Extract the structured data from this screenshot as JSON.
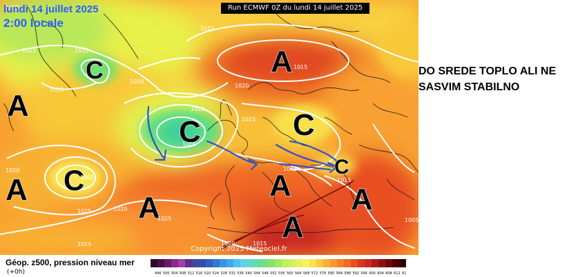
{
  "header": {
    "date": "lundi 14 juillet 2025",
    "time": "2:00 locale",
    "run": "Run ECMWF 0Z du lundi 14 juillet 2025"
  },
  "map": {
    "copyright": "Copyright 2025 Meteociel.fr",
    "centers": [
      {
        "letter": "A",
        "kind": "high"
      },
      {
        "letter": "A",
        "kind": "high"
      },
      {
        "letter": "A",
        "kind": "high"
      },
      {
        "letter": "A",
        "kind": "high"
      },
      {
        "letter": "A",
        "kind": "high"
      },
      {
        "letter": "A",
        "kind": "high"
      },
      {
        "letter": "A",
        "kind": "high"
      },
      {
        "letter": "C",
        "kind": "low"
      },
      {
        "letter": "C",
        "kind": "low"
      },
      {
        "letter": "C",
        "kind": "low"
      },
      {
        "letter": "C",
        "kind": "low"
      },
      {
        "letter": "C",
        "kind": "low"
      }
    ],
    "isobar_labels": [
      "1005",
      "1015",
      "1015",
      "1015",
      "1020",
      "1015",
      "1015",
      "1010",
      "1005",
      "1015",
      "1020",
      "1020",
      "1005",
      "1020",
      "1025",
      "1025",
      "1015",
      "1015",
      "1020",
      "1015",
      "1005",
      "1005"
    ]
  },
  "headline": {
    "line1": "DO SREDE TOPLO ALI NE",
    "line2": "SASVIM STABILNO"
  },
  "caption": {
    "title": "Géop. z500, pression niveau mer",
    "subtitle": "(+0h)"
  },
  "legend": {
    "colors": [
      "#2a0a2a",
      "#4a1048",
      "#6a1a6a",
      "#8a2a8a",
      "#a040a8",
      "#5a3090",
      "#404898",
      "#3050a8",
      "#3060c0",
      "#3078d0",
      "#3890e0",
      "#40a8e8",
      "#50c0f0",
      "#60d0e8",
      "#60d8c8",
      "#60e0a0",
      "#70e080",
      "#88e070",
      "#a0e860",
      "#b8f060",
      "#d0f060",
      "#e8f060",
      "#f8f060",
      "#f8e050",
      "#f8c840",
      "#f8b038",
      "#f89830",
      "#f88028",
      "#f06828",
      "#e85020",
      "#d83820",
      "#c82820",
      "#b01818",
      "#901010",
      "#700808",
      "#500000",
      "#300000"
    ],
    "values": [
      "496",
      "500",
      "504",
      "508",
      "512",
      "516",
      "520",
      "524",
      "528",
      "532",
      "536",
      "540",
      "544",
      "548",
      "552",
      "556",
      "560",
      "564",
      "568",
      "572",
      "576",
      "580",
      "584",
      "588",
      "592",
      "596",
      "600",
      "604",
      "608",
      "612",
      "616"
    ]
  }
}
